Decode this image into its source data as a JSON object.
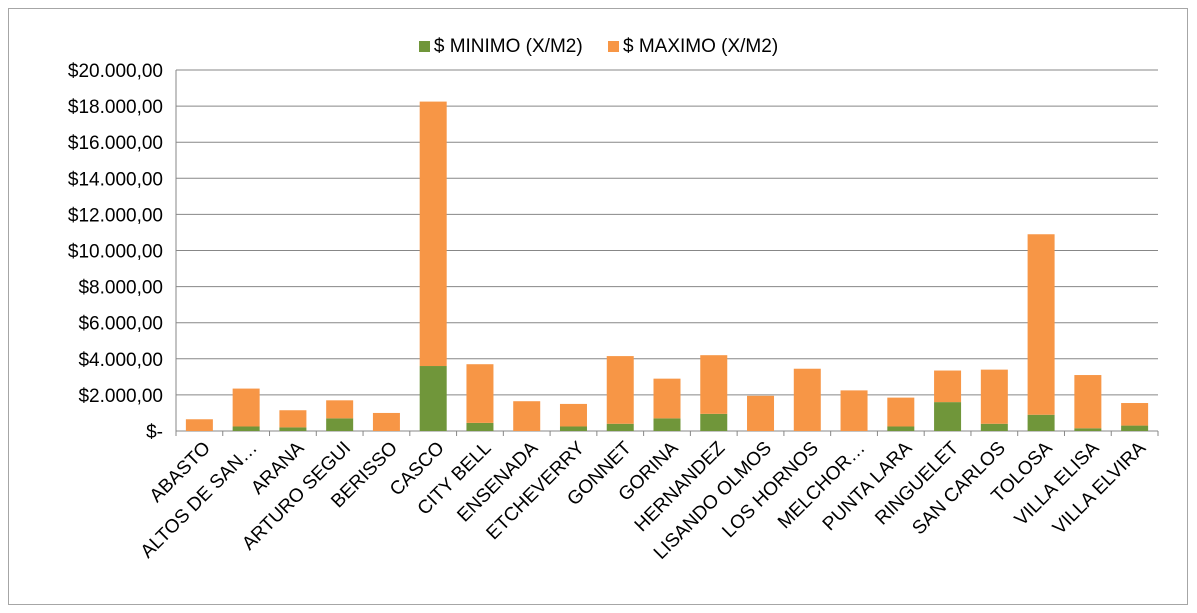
{
  "chart_data": {
    "type": "bar",
    "stacked": true,
    "categories": [
      "ABASTO",
      "ALTOS DE SAN…",
      "ARANA",
      "ARTURO SEGUI",
      "BERISSO",
      "CASCO",
      "CITY BELL",
      "ENSENADA",
      "ETCHEVERRY",
      "GONNET",
      "GORINA",
      "HERNANDEZ",
      "LISANDO OLMOS",
      "LOS HORNOS",
      "MELCHOR…",
      "PUNTA LARA",
      "RINGUELET",
      "SAN CARLOS",
      "TOLOSA",
      "VILLA ELISA",
      "VILLA ELVIRA"
    ],
    "series": [
      {
        "name": "$ MINIMO (X/M2)",
        "color": "#70963a",
        "values": [
          0,
          250,
          200,
          700,
          0,
          3600,
          450,
          0,
          250,
          400,
          700,
          950,
          0,
          0,
          0,
          250,
          1600,
          400,
          900,
          150,
          300
        ]
      },
      {
        "name": "$ MAXIMO (X/M2)",
        "color": "#f79646",
        "values": [
          650,
          2100,
          950,
          1000,
          1000,
          14650,
          3250,
          1650,
          1250,
          3750,
          2200,
          3250,
          1950,
          3450,
          2250,
          1600,
          1750,
          3000,
          10000,
          2950,
          1250
        ]
      }
    ],
    "ylim": [
      0,
      20000
    ],
    "yticks": [
      0,
      2000,
      4000,
      6000,
      8000,
      10000,
      12000,
      14000,
      16000,
      18000,
      20000
    ],
    "ytick_labels": [
      "$-",
      "$2.000,00",
      "$4.000,00",
      "$6.000,00",
      "$8.000,00",
      "$10.000,00",
      "$12.000,00",
      "$14.000,00",
      "$16.000,00",
      "$18.000,00",
      "$20.000,00"
    ],
    "legend_position": "top",
    "grid": true
  }
}
